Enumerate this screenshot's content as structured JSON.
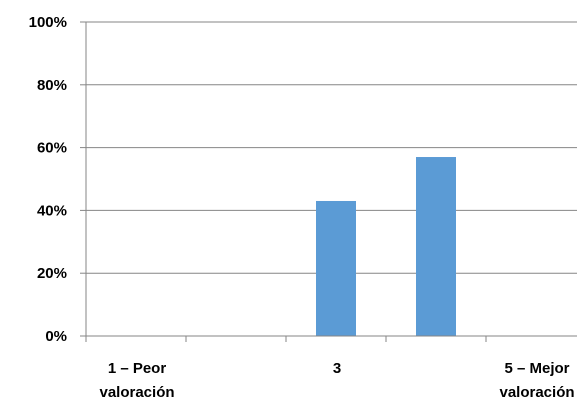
{
  "chart_data": {
    "type": "bar",
    "categories": [
      [
        "1 – Peor",
        "valoración"
      ],
      [
        ""
      ],
      [
        "3"
      ],
      [
        ""
      ],
      [
        "5 – Mejor",
        "valoración"
      ]
    ],
    "series": [
      {
        "values": [
          0,
          0,
          43,
          57,
          0
        ],
        "color": "#5B9BD5"
      }
    ],
    "yticks": [
      "0%",
      "20%",
      "40%",
      "60%",
      "80%",
      "100%"
    ],
    "ylim": [
      0,
      100
    ],
    "grid": true,
    "legend": "none"
  }
}
